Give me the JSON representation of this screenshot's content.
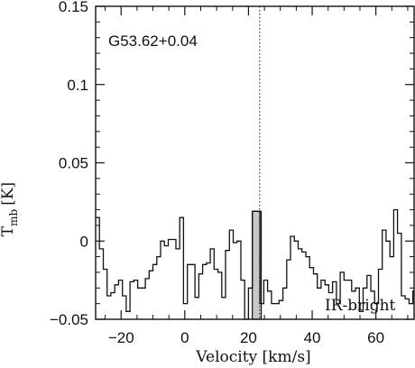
{
  "chart_data": {
    "type": "line",
    "style": "histogram-step",
    "source_label": "G53.62+0.04",
    "category_label": "IR-bright",
    "xlabel": "Velocity [km/s]",
    "ylabel_main": "T",
    "ylabel_sub": "mb",
    "ylabel_unit": "[K]",
    "xlim": [
      -28,
      72
    ],
    "ylim": [
      -0.05,
      0.15
    ],
    "xticks": [
      -20,
      0,
      20,
      40,
      60
    ],
    "xtick_labels": [
      "−20",
      "0",
      "20",
      "40",
      "60"
    ],
    "yticks": [
      -0.05,
      0,
      0.05,
      0.1,
      0.15
    ],
    "ytick_labels": [
      "−0.05",
      "0",
      "0.05",
      "0.1",
      "0.15"
    ],
    "reference_velocity": 23.5,
    "highlight_range": [
      21.2,
      24.0
    ],
    "x": [
      -28,
      -26.8,
      -25.6,
      -24.4,
      -23.2,
      -22.0,
      -20.8,
      -19.6,
      -18.4,
      -17.2,
      -16.0,
      -14.8,
      -13.6,
      -12.4,
      -11.2,
      -10.0,
      -8.8,
      -7.6,
      -6.4,
      -5.2,
      -4.0,
      -2.8,
      -1.6,
      -0.4,
      0.8,
      2.0,
      3.2,
      4.4,
      5.6,
      6.8,
      8.0,
      9.2,
      10.4,
      11.6,
      12.8,
      14.0,
      15.2,
      16.4,
      17.6,
      18.8,
      20.0,
      21.2,
      22.4,
      23.6,
      24.8,
      26.0,
      27.2,
      28.4,
      29.6,
      30.8,
      32.0,
      33.2,
      34.4,
      35.6,
      36.8,
      38.0,
      39.2,
      40.4,
      41.6,
      42.8,
      44.0,
      45.2,
      46.4,
      47.6,
      48.8,
      50.0,
      51.2,
      52.4,
      53.6,
      54.8,
      56.0,
      57.2,
      58.4,
      59.6,
      60.8,
      62.0,
      63.2,
      64.4,
      65.6,
      66.8,
      68.0,
      69.2,
      70.4,
      71.6
    ],
    "values": [
      0.015,
      -0.005,
      -0.018,
      -0.035,
      -0.033,
      -0.028,
      -0.025,
      -0.035,
      -0.045,
      -0.026,
      -0.025,
      -0.03,
      -0.03,
      -0.024,
      -0.019,
      -0.015,
      -0.01,
      0.0,
      -0.003,
      0.001,
      0.001,
      -0.005,
      0.015,
      -0.04,
      -0.015,
      -0.015,
      -0.036,
      -0.021,
      -0.015,
      -0.014,
      -0.005,
      -0.018,
      -0.02,
      -0.036,
      -0.006,
      0.007,
      -0.001,
      0.0,
      -0.025,
      -0.05,
      -0.03,
      0.019,
      0.019,
      -0.04,
      -0.025,
      -0.032,
      -0.04,
      -0.04,
      -0.038,
      -0.03,
      -0.012,
      0.003,
      0.0,
      -0.005,
      -0.007,
      -0.01,
      -0.017,
      -0.021,
      -0.03,
      -0.025,
      -0.028,
      -0.033,
      -0.026,
      -0.04,
      -0.02,
      -0.025,
      -0.025,
      -0.032,
      -0.03,
      -0.045,
      -0.03,
      -0.022,
      -0.032,
      -0.04,
      -0.018,
      0.007,
      0.0,
      -0.01,
      0.02,
      0.005,
      -0.035,
      -0.037,
      -0.04,
      -0.032
    ]
  }
}
